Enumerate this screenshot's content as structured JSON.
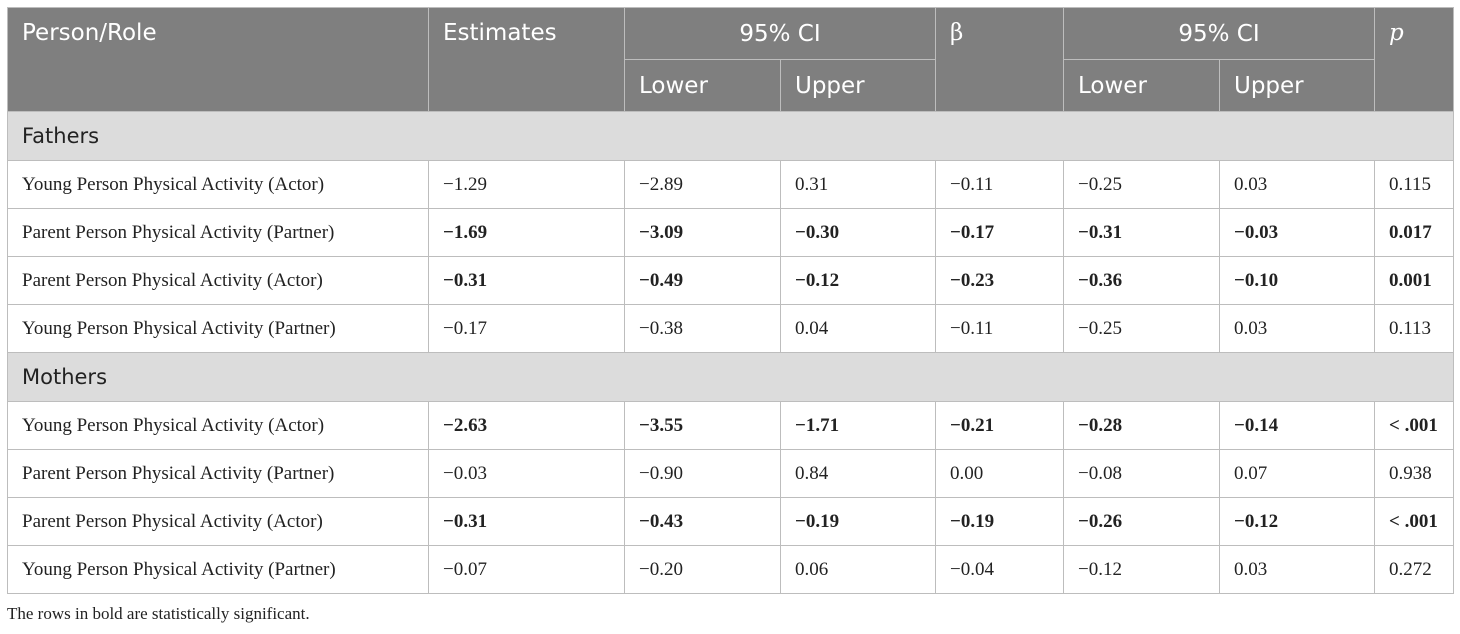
{
  "header": {
    "person_role": "Person/Role",
    "estimates": "Estimates",
    "ci1": "95% CI",
    "beta": "β",
    "ci2": "95% CI",
    "p": "p",
    "lower": "Lower",
    "upper": "Upper"
  },
  "groups": [
    {
      "label": "Fathers",
      "rows": [
        {
          "role": "Young Person Physical Activity (Actor)",
          "est": "−1.29",
          "lo1": "−2.89",
          "up1": "0.31",
          "beta": "−0.11",
          "lo2": "−0.25",
          "up2": "0.03",
          "p": "0.115",
          "bold": false
        },
        {
          "role": "Parent Person Physical Activity (Partner)",
          "est": "−1.69",
          "lo1": "−3.09",
          "up1": "−0.30",
          "beta": "−0.17",
          "lo2": "−0.31",
          "up2": "−0.03",
          "p": "0.017",
          "bold": true
        },
        {
          "role": "Parent Person Physical Activity (Actor)",
          "est": "−0.31",
          "lo1": "−0.49",
          "up1": "−0.12",
          "beta": "−0.23",
          "lo2": "−0.36",
          "up2": "−0.10",
          "p": "0.001",
          "bold": true
        },
        {
          "role": "Young Person Physical Activity (Partner)",
          "est": "−0.17",
          "lo1": "−0.38",
          "up1": "0.04",
          "beta": "−0.11",
          "lo2": "−0.25",
          "up2": "0.03",
          "p": "0.113",
          "bold": false
        }
      ]
    },
    {
      "label": "Mothers",
      "rows": [
        {
          "role": "Young Person Physical Activity (Actor)",
          "est": "−2.63",
          "lo1": "−3.55",
          "up1": "−1.71",
          "beta": "−0.21",
          "lo2": "−0.28",
          "up2": "−0.14",
          "p": "< .001",
          "bold": true
        },
        {
          "role": "Parent Person Physical Activity (Partner)",
          "est": "−0.03",
          "lo1": "−0.90",
          "up1": "0.84",
          "beta": "0.00",
          "lo2": "−0.08",
          "up2": "0.07",
          "p": "0.938",
          "bold": false
        },
        {
          "role": "Parent Person Physical Activity (Actor)",
          "est": "−0.31",
          "lo1": "−0.43",
          "up1": "−0.19",
          "beta": "−0.19",
          "lo2": "−0.26",
          "up2": "−0.12",
          "p": "< .001",
          "bold": true
        },
        {
          "role": "Young Person Physical Activity (Partner)",
          "est": "−0.07",
          "lo1": "−0.20",
          "up1": "0.06",
          "beta": "−0.04",
          "lo2": "−0.12",
          "up2": "0.03",
          "p": "0.272",
          "bold": false
        }
      ]
    }
  ],
  "note": "The rows in bold are statistically significant."
}
